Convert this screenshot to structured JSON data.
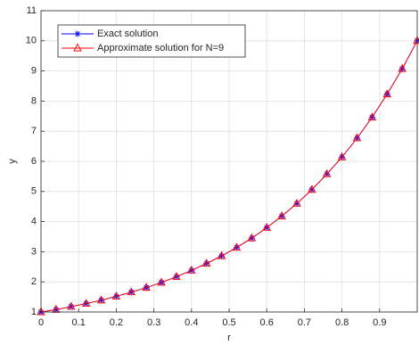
{
  "chart_data": {
    "type": "line",
    "x_label": "r",
    "y_label": "y",
    "x": [
      0,
      0.04,
      0.08,
      0.12,
      0.16,
      0.2,
      0.24,
      0.28,
      0.32,
      0.36,
      0.4,
      0.44,
      0.48,
      0.52,
      0.56,
      0.6,
      0.64,
      0.68,
      0.72,
      0.76,
      0.8,
      0.84,
      0.88,
      0.92,
      0.96,
      1
    ],
    "series": [
      {
        "name": "Exact solution",
        "color": "#0000ff",
        "marker": "asterisk",
        "values": [
          1.0,
          1.08,
          1.18,
          1.28,
          1.39,
          1.52,
          1.66,
          1.81,
          1.98,
          2.17,
          2.38,
          2.61,
          2.86,
          3.14,
          3.45,
          3.8,
          4.18,
          4.6,
          5.06,
          5.58,
          6.14,
          6.77,
          7.46,
          8.23,
          9.07,
          10.0
        ]
      },
      {
        "name": "Approximate solution for N=9",
        "color": "#ff0000",
        "marker": "triangle",
        "values": [
          1.0,
          1.08,
          1.18,
          1.28,
          1.39,
          1.52,
          1.66,
          1.81,
          1.98,
          2.17,
          2.38,
          2.61,
          2.86,
          3.14,
          3.45,
          3.8,
          4.18,
          4.6,
          5.06,
          5.58,
          6.14,
          6.77,
          7.46,
          8.23,
          9.07,
          10.0
        ]
      }
    ],
    "xlim": [
      0,
      1
    ],
    "xticks": [
      0,
      0.1,
      0.2,
      0.3,
      0.4,
      0.5,
      0.6,
      0.7,
      0.8,
      0.9
    ],
    "ylim": [
      1,
      11
    ],
    "yticks": [
      1,
      2,
      3,
      4,
      5,
      6,
      7,
      8,
      9,
      10,
      11
    ],
    "grid": true,
    "legend": "upper-left"
  }
}
